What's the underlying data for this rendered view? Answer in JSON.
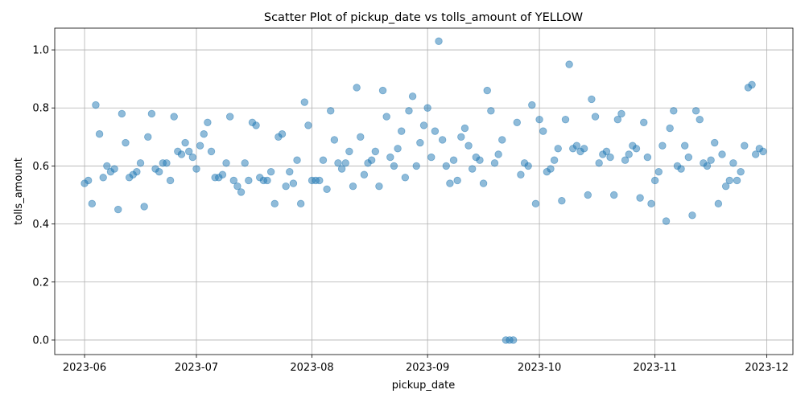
{
  "chart_data": {
    "type": "scatter",
    "title": "Scatter Plot of pickup_date vs tolls_amount of YELLOW",
    "xlabel": "pickup_date",
    "ylabel": "tolls_amount",
    "x_is_date": true,
    "xlim": [
      "2023-05-24",
      "2023-12-08"
    ],
    "ylim": [
      -0.05,
      1.075
    ],
    "x_ticks": [
      {
        "date": "2023-06-01",
        "label": "2023-06"
      },
      {
        "date": "2023-07-01",
        "label": "2023-07"
      },
      {
        "date": "2023-08-01",
        "label": "2023-08"
      },
      {
        "date": "2023-09-01",
        "label": "2023-09"
      },
      {
        "date": "2023-10-01",
        "label": "2023-10"
      },
      {
        "date": "2023-11-01",
        "label": "2023-11"
      },
      {
        "date": "2023-12-01",
        "label": "2023-12"
      }
    ],
    "y_ticks": [
      {
        "value": 0.0,
        "label": "0.0"
      },
      {
        "value": 0.2,
        "label": "0.2"
      },
      {
        "value": 0.4,
        "label": "0.4"
      },
      {
        "value": 0.6,
        "label": "0.6"
      },
      {
        "value": 0.8,
        "label": "0.8"
      },
      {
        "value": 1.0,
        "label": "1.0"
      }
    ],
    "grid": true,
    "marker_color": "#1f77b4",
    "marker_alpha": 0.5,
    "series": [
      {
        "x": [
          "2023-06-01",
          "2023-06-02",
          "2023-06-03",
          "2023-06-04",
          "2023-06-05",
          "2023-06-06",
          "2023-06-07",
          "2023-06-08",
          "2023-06-09",
          "2023-06-10",
          "2023-06-11",
          "2023-06-12",
          "2023-06-13",
          "2023-06-14",
          "2023-06-15",
          "2023-06-16",
          "2023-06-17",
          "2023-06-18",
          "2023-06-19",
          "2023-06-20",
          "2023-06-21",
          "2023-06-22",
          "2023-06-23",
          "2023-06-24",
          "2023-06-25",
          "2023-06-26",
          "2023-06-27",
          "2023-06-28",
          "2023-06-29",
          "2023-06-30",
          "2023-07-01",
          "2023-07-02",
          "2023-07-03",
          "2023-07-04",
          "2023-07-05",
          "2023-07-06",
          "2023-07-07",
          "2023-07-08",
          "2023-07-09",
          "2023-07-10",
          "2023-07-11",
          "2023-07-12",
          "2023-07-13",
          "2023-07-14",
          "2023-07-15",
          "2023-07-16",
          "2023-07-17",
          "2023-07-18",
          "2023-07-19",
          "2023-07-20",
          "2023-07-21",
          "2023-07-22",
          "2023-07-23",
          "2023-07-24",
          "2023-07-25",
          "2023-07-26",
          "2023-07-27",
          "2023-07-28",
          "2023-07-29",
          "2023-07-30",
          "2023-07-31",
          "2023-08-01",
          "2023-08-02",
          "2023-08-03",
          "2023-08-04",
          "2023-08-05",
          "2023-08-06",
          "2023-08-07",
          "2023-08-08",
          "2023-08-09",
          "2023-08-10",
          "2023-08-11",
          "2023-08-12",
          "2023-08-13",
          "2023-08-14",
          "2023-08-15",
          "2023-08-16",
          "2023-08-17",
          "2023-08-18",
          "2023-08-19",
          "2023-08-20",
          "2023-08-21",
          "2023-08-22",
          "2023-08-23",
          "2023-08-24",
          "2023-08-25",
          "2023-08-26",
          "2023-08-27",
          "2023-08-28",
          "2023-08-29",
          "2023-08-30",
          "2023-08-31",
          "2023-09-01",
          "2023-09-02",
          "2023-09-03",
          "2023-09-04",
          "2023-09-05",
          "2023-09-06",
          "2023-09-07",
          "2023-09-08",
          "2023-09-09",
          "2023-09-10",
          "2023-09-11",
          "2023-09-12",
          "2023-09-13",
          "2023-09-14",
          "2023-09-15",
          "2023-09-16",
          "2023-09-17",
          "2023-09-18",
          "2023-09-19",
          "2023-09-20",
          "2023-09-21",
          "2023-09-22",
          "2023-09-23",
          "2023-09-24",
          "2023-09-25",
          "2023-09-26",
          "2023-09-27",
          "2023-09-28",
          "2023-09-29",
          "2023-09-30",
          "2023-10-01",
          "2023-10-02",
          "2023-10-03",
          "2023-10-04",
          "2023-10-05",
          "2023-10-06",
          "2023-10-07",
          "2023-10-08",
          "2023-10-09",
          "2023-10-10",
          "2023-10-11",
          "2023-10-12",
          "2023-10-13",
          "2023-10-14",
          "2023-10-15",
          "2023-10-16",
          "2023-10-17",
          "2023-10-18",
          "2023-10-19",
          "2023-10-20",
          "2023-10-21",
          "2023-10-22",
          "2023-10-23",
          "2023-10-24",
          "2023-10-25",
          "2023-10-26",
          "2023-10-27",
          "2023-10-28",
          "2023-10-29",
          "2023-10-30",
          "2023-10-31",
          "2023-11-01",
          "2023-11-02",
          "2023-11-03",
          "2023-11-04",
          "2023-11-05",
          "2023-11-06",
          "2023-11-07",
          "2023-11-08",
          "2023-11-09",
          "2023-11-10",
          "2023-11-11",
          "2023-11-12",
          "2023-11-13",
          "2023-11-14",
          "2023-11-15",
          "2023-11-16",
          "2023-11-17",
          "2023-11-18",
          "2023-11-19",
          "2023-11-20",
          "2023-11-21",
          "2023-11-22",
          "2023-11-23",
          "2023-11-24",
          "2023-11-25",
          "2023-11-26",
          "2023-11-27",
          "2023-11-28",
          "2023-11-29",
          "2023-11-30"
        ],
        "y": [
          0.54,
          0.55,
          0.47,
          0.81,
          0.71,
          0.56,
          0.6,
          0.58,
          0.59,
          0.45,
          0.78,
          0.68,
          0.56,
          0.57,
          0.58,
          0.61,
          0.46,
          0.7,
          0.78,
          0.59,
          0.58,
          0.61,
          0.61,
          0.55,
          0.77,
          0.65,
          0.64,
          0.68,
          0.65,
          0.63,
          0.59,
          0.67,
          0.71,
          0.75,
          0.65,
          0.56,
          0.56,
          0.57,
          0.61,
          0.77,
          0.55,
          0.53,
          0.51,
          0.61,
          0.55,
          0.75,
          0.74,
          0.56,
          0.55,
          0.55,
          0.58,
          0.47,
          0.7,
          0.71,
          0.53,
          0.58,
          0.54,
          0.62,
          0.47,
          0.82,
          0.74,
          0.55,
          0.55,
          0.55,
          0.62,
          0.52,
          0.79,
          0.69,
          0.61,
          0.59,
          0.61,
          0.65,
          0.53,
          0.87,
          0.7,
          0.57,
          0.61,
          0.62,
          0.65,
          0.53,
          0.86,
          0.77,
          0.63,
          0.6,
          0.66,
          0.72,
          0.56,
          0.79,
          0.84,
          0.6,
          0.68,
          0.74,
          0.8,
          0.63,
          0.72,
          1.03,
          0.69,
          0.6,
          0.54,
          0.62,
          0.55,
          0.7,
          0.73,
          0.67,
          0.59,
          0.63,
          0.62,
          0.54,
          0.86,
          0.79,
          0.61,
          0.64,
          0.69,
          0.0,
          0.0,
          0.0,
          0.75,
          0.57,
          0.61,
          0.6,
          0.81,
          0.47,
          0.76,
          0.72,
          0.58,
          0.59,
          0.62,
          0.66,
          0.48,
          0.76,
          0.95,
          0.66,
          0.67,
          0.65,
          0.66,
          0.5,
          0.83,
          0.77,
          0.61,
          0.64,
          0.65,
          0.63,
          0.5,
          0.76,
          0.78,
          0.62,
          0.64,
          0.67,
          0.66,
          0.49,
          0.75,
          0.63,
          0.47,
          0.55,
          0.58,
          0.67,
          0.41,
          0.73,
          0.79,
          0.6,
          0.59,
          0.67,
          0.63,
          0.43,
          0.79,
          0.76,
          0.61,
          0.6,
          0.62,
          0.68,
          0.47,
          0.64,
          0.53,
          0.55,
          0.61,
          0.55,
          0.58,
          0.67,
          0.87,
          0.88,
          0.64,
          0.66,
          0.65
        ]
      }
    ]
  }
}
